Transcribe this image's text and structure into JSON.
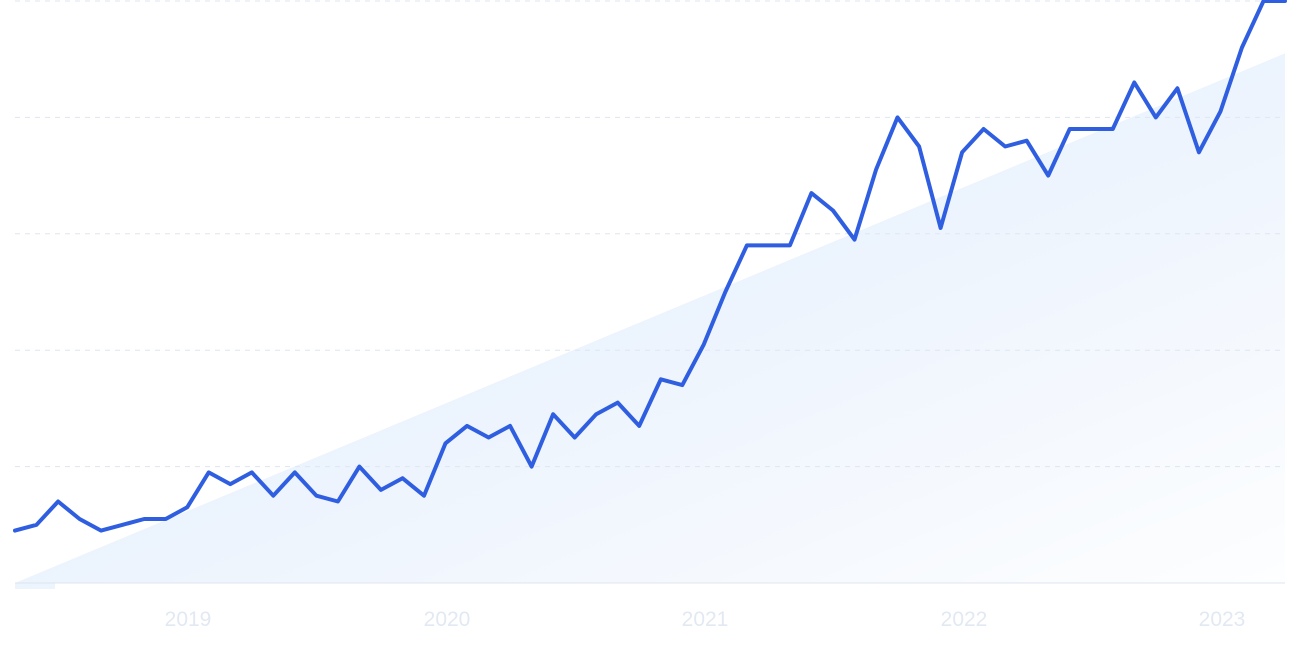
{
  "chart_data": {
    "type": "line",
    "title": "",
    "xlabel": "",
    "ylabel": "",
    "x_tick_labels": [
      "2019",
      "2020",
      "2021",
      "2022",
      "2023"
    ],
    "ylim": [
      0,
      100
    ],
    "grid": true,
    "series": [
      {
        "values": [
          9,
          10,
          14,
          11,
          9,
          10,
          11,
          11,
          13,
          19,
          17,
          19,
          15,
          19,
          15,
          14,
          20,
          16,
          18,
          15,
          24,
          27,
          25,
          27,
          20,
          29,
          25,
          29,
          31,
          27,
          35,
          34,
          41,
          50,
          58,
          58,
          58,
          67,
          64,
          59,
          71,
          80,
          75,
          61,
          74,
          78,
          75,
          76,
          70,
          78,
          78,
          78,
          86,
          80,
          85,
          74,
          81,
          92,
          100,
          100
        ]
      }
    ],
    "trend": {
      "start": 0,
      "end": 91
    },
    "colors": {
      "line": "#2f5fe0",
      "trend_fill": "#dbe9fb",
      "grid": "#dfe5ee",
      "tick_label": "#e2e9f3"
    }
  }
}
